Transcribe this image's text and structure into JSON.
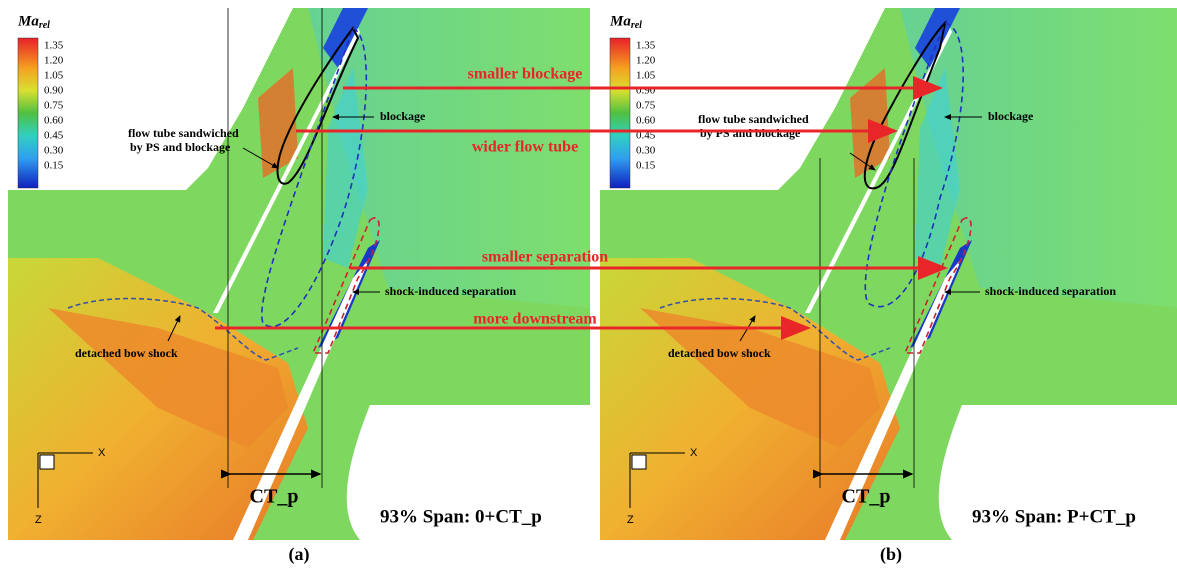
{
  "panels": [
    {
      "label": "(a)",
      "span_label": "93% Span: 0+CT_p",
      "dimension": "CT_p",
      "colorbar": {
        "title": "Ma",
        "subscript": "rel",
        "ticks": [
          "1.35",
          "1.20",
          "1.05",
          "0.90",
          "0.75",
          "0.60",
          "0.45",
          "0.30",
          "0.15"
        ]
      },
      "annotations": {
        "flow_tube": [
          "flow tube sandwiched",
          "by PS and blockage"
        ],
        "blockage": "blockage",
        "separation": "shock-induced separation",
        "bow_shock": "detached bow shock"
      },
      "axes": {
        "x": "X",
        "z": "Z"
      }
    },
    {
      "label": "(b)",
      "span_label": "93% Span: P+CT_p",
      "dimension": "CT_p",
      "colorbar": {
        "title": "Ma",
        "subscript": "rel",
        "ticks": [
          "1.35",
          "1.20",
          "1.05",
          "0.90",
          "0.75",
          "0.60",
          "0.45",
          "0.30",
          "0.15"
        ]
      },
      "annotations": {
        "flow_tube": [
          "flow tube sandwiched",
          "by PS and blockage"
        ],
        "blockage": "blockage",
        "separation": "shock-induced separation",
        "bow_shock": "detached bow shock"
      },
      "axes": {
        "x": "X",
        "z": "Z"
      }
    }
  ],
  "comparisons": [
    "smaller blockage",
    "wider flow tube",
    "smaller separation",
    "more downstream"
  ]
}
